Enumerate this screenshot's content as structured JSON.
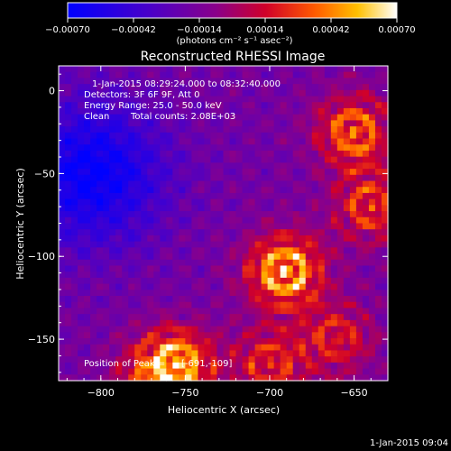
{
  "colorbar": {
    "ticks": [
      "-0.00070",
      "-0.00042",
      "-0.00014",
      "0.00014",
      "0.00042",
      "0.00070"
    ],
    "range": [
      -0.0007,
      0.0007
    ],
    "unit_label": "(photons cm⁻² s⁻¹ asec⁻²)"
  },
  "chart_data": {
    "type": "heatmap",
    "title": "Reconstructed RHESSI Image",
    "xlabel": "Heliocentric X (arcsec)",
    "ylabel": "Heliocentric Y (arcsec)",
    "xlim": [
      -825,
      -630
    ],
    "ylim": [
      -175,
      15
    ],
    "x_ticks": [
      {
        "value": -800,
        "label": "−800"
      },
      {
        "value": -750,
        "label": "−750"
      },
      {
        "value": -700,
        "label": "−700"
      },
      {
        "value": -650,
        "label": "−650"
      }
    ],
    "y_ticks": [
      {
        "value": 0,
        "label": "0"
      },
      {
        "value": -50,
        "label": "−50"
      },
      {
        "value": -100,
        "label": "−100"
      },
      {
        "value": -150,
        "label": "−150"
      }
    ],
    "sources": [
      {
        "x": -691,
        "y": -109,
        "amplitude": 1.0
      },
      {
        "x": -650,
        "y": -25,
        "amplitude": 0.75
      },
      {
        "x": -640,
        "y": -70,
        "amplitude": 0.6
      },
      {
        "x": -755,
        "y": -165,
        "amplitude": 0.85
      },
      {
        "x": -700,
        "y": -165,
        "amplitude": 0.55
      },
      {
        "x": -660,
        "y": -150,
        "amplitude": 0.5
      },
      {
        "x": -770,
        "y": -175,
        "amplitude": 0.45
      }
    ],
    "cold_region": {
      "x": -805,
      "y": -50,
      "amplitude": -0.6
    },
    "annotations": {
      "time_range": "1-Jan-2015 08:29:24.000 to 08:32:40.000",
      "detectors": "Detectors: 3F 6F 9F, Att 0",
      "energy": "Energy Range: 25.0 - 50.0 keV",
      "method": "Clean",
      "counts": "Total counts: 2.08E+03",
      "peak_prefix": "Position of Peak = ",
      "peak_value": "[-691,-109]"
    }
  },
  "footer": {
    "timestamp": "1-Jan-2015 09:04"
  }
}
